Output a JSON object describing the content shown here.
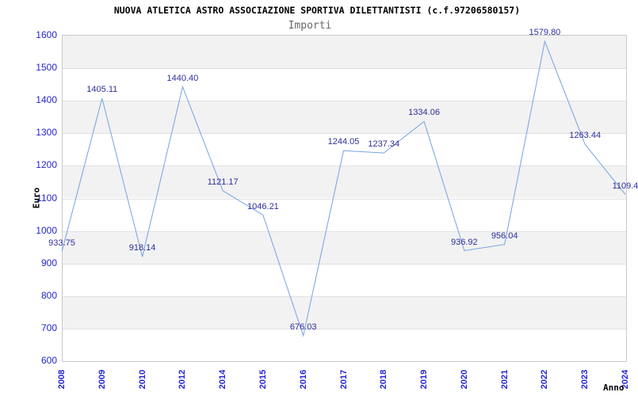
{
  "chart_data": {
    "type": "line",
    "title": "NUOVA ATLETICA ASTRO ASSOCIAZIONE SPORTIVA DILETTANTISTI (c.f.97206580157)",
    "subtitle": "Importi",
    "xlabel": "Anno",
    "ylabel": "Euro",
    "categories": [
      "2008",
      "2009",
      "2010",
      "2012",
      "2014",
      "2015",
      "2016",
      "2017",
      "2018",
      "2019",
      "2020",
      "2021",
      "2022",
      "2023",
      "2024"
    ],
    "values": [
      933.75,
      1405.11,
      918.14,
      1440.4,
      1121.17,
      1046.21,
      676.03,
      1244.05,
      1237.34,
      1334.06,
      936.92,
      956.04,
      1579.8,
      1263.44,
      1109.4
    ],
    "point_labels": [
      "933.75",
      "1405.11",
      "918.14",
      "1440.40",
      "1121.17",
      "1046.21",
      "676.03",
      "1244.05",
      "1237.34",
      "1334.06",
      "936.92",
      "956.04",
      "1579.80",
      "1263.44",
      "1109.4"
    ],
    "ylim": [
      600,
      1600
    ],
    "ytick_step": 100,
    "grid": "horizontal-bands-alternating",
    "legend": "none",
    "colors": {
      "line": "#75a2e0",
      "tick_label": "#2424d2",
      "point_label": "#2e2e9e",
      "band_gray": "#f2f2f2",
      "band_white": "#ffffff",
      "grid_line": "#e0e0e0",
      "plot_border": "#c8c8c8",
      "title": "#000000",
      "subtitle": "#666666"
    }
  }
}
